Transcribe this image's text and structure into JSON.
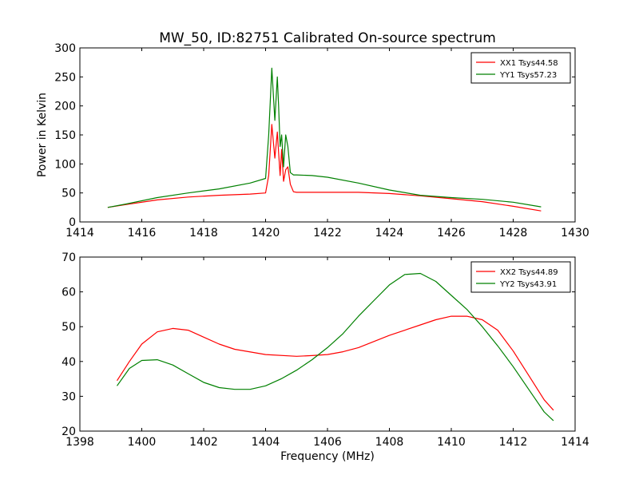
{
  "figure": {
    "title": "MW_50, ID:82751 Calibrated On-source spectrum",
    "shared_xlabel": "Frequency (MHz)",
    "colors": {
      "XX": "#ff0000",
      "YY": "#008000",
      "axes": "#000000",
      "background": "#ffffff"
    }
  },
  "chart_data": [
    {
      "type": "line",
      "title": "MW_50, ID:82751 Calibrated On-source spectrum",
      "ylabel": "Power in Kelvin",
      "xlabel": "",
      "xlim": [
        1414,
        1430
      ],
      "ylim": [
        0,
        300
      ],
      "xticks": [
        1414,
        1416,
        1418,
        1420,
        1422,
        1424,
        1426,
        1428,
        1430
      ],
      "yticks": [
        0,
        50,
        100,
        150,
        200,
        250,
        300
      ],
      "grid": false,
      "legend_position": "top-right",
      "series": [
        {
          "name": "XX1 Tsys44.58",
          "color": "#ff0000",
          "x": [
            1414.9,
            1415.5,
            1416.5,
            1417.5,
            1418.5,
            1419.5,
            1420.0,
            1420.1,
            1420.2,
            1420.3,
            1420.38,
            1420.42,
            1420.47,
            1420.52,
            1420.58,
            1420.65,
            1420.72,
            1420.8,
            1420.9,
            1421.0,
            1422.0,
            1423.0,
            1424.0,
            1425.0,
            1426.0,
            1427.0,
            1428.0,
            1428.9
          ],
          "y": [
            25,
            30,
            38,
            43,
            46,
            48,
            50,
            80,
            168,
            110,
            155,
            120,
            80,
            125,
            70,
            90,
            95,
            65,
            52,
            51,
            51,
            51,
            49,
            45,
            40,
            35,
            27,
            19
          ]
        },
        {
          "name": "YY1 Tsys57.23",
          "color": "#008000",
          "x": [
            1414.9,
            1415.5,
            1416.5,
            1417.5,
            1418.5,
            1419.5,
            1420.0,
            1420.1,
            1420.2,
            1420.3,
            1420.38,
            1420.42,
            1420.47,
            1420.52,
            1420.58,
            1420.65,
            1420.72,
            1420.8,
            1420.9,
            1421.0,
            1421.5,
            1422.0,
            1423.0,
            1424.0,
            1425.0,
            1426.0,
            1427.0,
            1428.0,
            1428.9
          ],
          "y": [
            25,
            31,
            42,
            50,
            57,
            67,
            75,
            150,
            265,
            175,
            250,
            200,
            130,
            150,
            95,
            150,
            130,
            85,
            81,
            81,
            80,
            77,
            67,
            55,
            46,
            42,
            39,
            34,
            26
          ]
        }
      ]
    },
    {
      "type": "line",
      "title": "",
      "ylabel": "",
      "xlabel": "Frequency (MHz)",
      "xlim": [
        1398,
        1414
      ],
      "ylim": [
        20,
        70
      ],
      "xticks": [
        1398,
        1400,
        1402,
        1404,
        1406,
        1408,
        1410,
        1412,
        1414
      ],
      "yticks": [
        20,
        30,
        40,
        50,
        60,
        70
      ],
      "grid": false,
      "legend_position": "top-right",
      "series": [
        {
          "name": "XX2 Tsys44.89",
          "color": "#ff0000",
          "x": [
            1399.2,
            1399.6,
            1400.0,
            1400.5,
            1401.0,
            1401.5,
            1402.0,
            1402.5,
            1403.0,
            1404.0,
            1405.0,
            1405.5,
            1406.0,
            1406.5,
            1407.0,
            1408.0,
            1409.0,
            1409.5,
            1410.0,
            1410.5,
            1411.0,
            1411.5,
            1412.0,
            1412.5,
            1413.0,
            1413.3
          ],
          "y": [
            34.5,
            40,
            45,
            48.5,
            49.5,
            49,
            47,
            45,
            43.5,
            42,
            41.5,
            41.7,
            42,
            42.8,
            44,
            47.5,
            50.5,
            52,
            53,
            53,
            52,
            49,
            43,
            36,
            29,
            26
          ]
        },
        {
          "name": "YY2 Tsys43.91",
          "color": "#008000",
          "x": [
            1399.2,
            1399.6,
            1400.0,
            1400.5,
            1401.0,
            1401.5,
            1402.0,
            1402.5,
            1403.0,
            1403.5,
            1404.0,
            1404.5,
            1405.0,
            1405.5,
            1406.0,
            1406.5,
            1407.0,
            1407.5,
            1408.0,
            1408.5,
            1409.0,
            1409.5,
            1410.0,
            1410.5,
            1411.0,
            1411.5,
            1412.0,
            1412.5,
            1413.0,
            1413.3
          ],
          "y": [
            33,
            38,
            40.3,
            40.5,
            39,
            36.5,
            34,
            32.5,
            32,
            32,
            33,
            35,
            37.5,
            40.5,
            44,
            48,
            53,
            57.5,
            62,
            65,
            65.3,
            63,
            59,
            55,
            50,
            44.5,
            38.5,
            32,
            25.5,
            23
          ]
        }
      ]
    }
  ]
}
